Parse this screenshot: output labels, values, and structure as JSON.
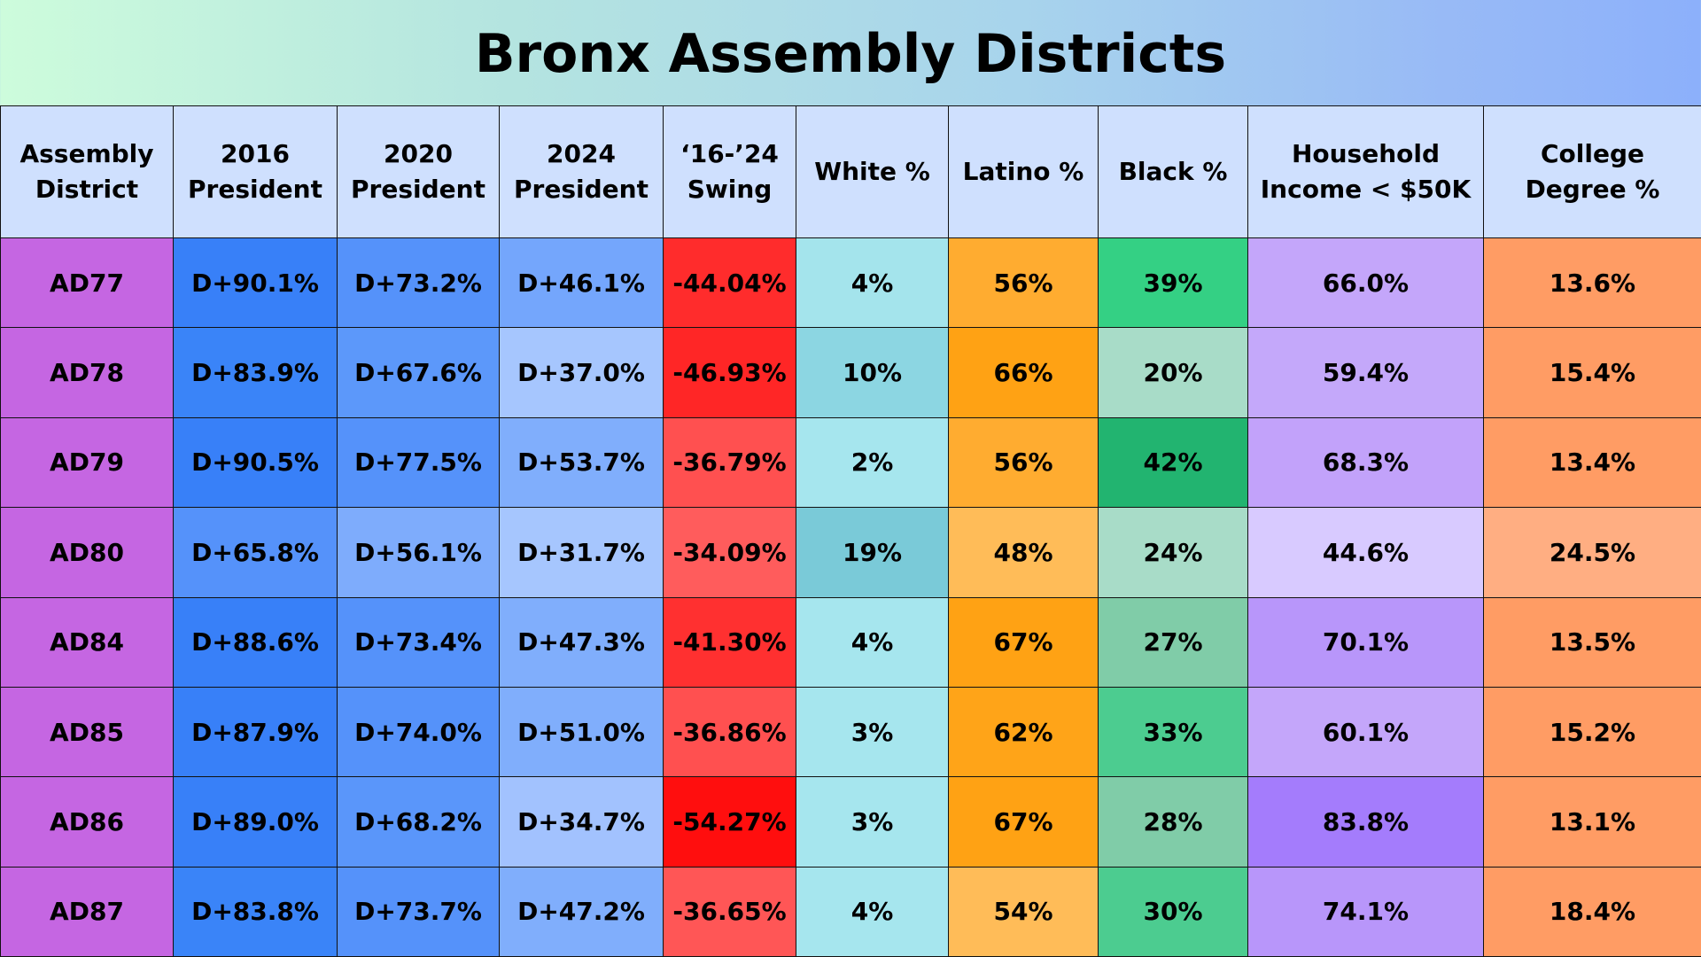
{
  "title": "Bronx Assembly Districts",
  "chart_data": {
    "type": "table",
    "title": "Bronx Assembly Districts",
    "columns": [
      [
        "Assembly",
        "District"
      ],
      [
        "2016",
        "President"
      ],
      [
        "2020",
        "President"
      ],
      [
        "2024",
        "President"
      ],
      [
        "‘16-’24",
        "Swing"
      ],
      [
        "White %"
      ],
      [
        "Latino %"
      ],
      [
        "Black %"
      ],
      [
        "Household",
        "Income < $50K"
      ],
      [
        "College",
        "Degree %"
      ]
    ],
    "rows": [
      [
        "AD77",
        "D+90.1%",
        "D+73.2%",
        "D+46.1%",
        "-44.04%",
        "4%",
        "56%",
        "39%",
        "66.0%",
        "13.6%"
      ],
      [
        "AD78",
        "D+83.9%",
        "D+67.6%",
        "D+37.0%",
        "-46.93%",
        "10%",
        "66%",
        "20%",
        "59.4%",
        "15.4%"
      ],
      [
        "AD79",
        "D+90.5%",
        "D+77.5%",
        "D+53.7%",
        "-36.79%",
        "2%",
        "56%",
        "42%",
        "68.3%",
        "13.4%"
      ],
      [
        "AD80",
        "D+65.8%",
        "D+56.1%",
        "D+31.7%",
        "-34.09%",
        "19%",
        "48%",
        "24%",
        "44.6%",
        "24.5%"
      ],
      [
        "AD84",
        "D+88.6%",
        "D+73.4%",
        "D+47.3%",
        "-41.30%",
        "4%",
        "67%",
        "27%",
        "70.1%",
        "13.5%"
      ],
      [
        "AD85",
        "D+87.9%",
        "D+74.0%",
        "D+51.0%",
        "-36.86%",
        "3%",
        "62%",
        "33%",
        "60.1%",
        "15.2%"
      ],
      [
        "AD86",
        "D+89.0%",
        "D+68.2%",
        "D+34.7%",
        "-54.27%",
        "3%",
        "67%",
        "28%",
        "83.8%",
        "13.1%"
      ],
      [
        "AD87",
        "D+83.8%",
        "D+73.7%",
        "D+47.2%",
        "-36.65%",
        "4%",
        "54%",
        "30%",
        "74.1%",
        "18.4%"
      ]
    ],
    "cell_colors": [
      [
        "#c566e2",
        "#3880f8",
        "#5592fa",
        "#74a6fc",
        "#ff2c2c",
        "#a4e4ec",
        "#ffac30",
        "#34d084",
        "#c4a6fa",
        "#ff9c64"
      ],
      [
        "#c566e2",
        "#3a84f8",
        "#5c98fa",
        "#a6c6fe",
        "#ff2626",
        "#8cd6e2",
        "#ffa214",
        "#a8dcc8",
        "#c4a8fa",
        "#ff9c64"
      ],
      [
        "#c566e2",
        "#3880f8",
        "#5592fa",
        "#80aefc",
        "#ff5050",
        "#a6e6ee",
        "#ffac30",
        "#22b470",
        "#c2a2fa",
        "#ff9c64"
      ],
      [
        "#c566e2",
        "#5592fa",
        "#7eacfc",
        "#a6c6fe",
        "#ff5c5c",
        "#7acad8",
        "#ffbc58",
        "#a8dcc8",
        "#d8caff",
        "#ffae82"
      ],
      [
        "#c566e2",
        "#3880f8",
        "#5592fa",
        "#80aefc",
        "#ff3030",
        "#a6e6ee",
        "#ffa214",
        "#80cca8",
        "#b896fa",
        "#ff9c64"
      ],
      [
        "#c566e2",
        "#3880f8",
        "#5592fa",
        "#80aefc",
        "#ff5050",
        "#a6e6ee",
        "#ffa418",
        "#4ccc90",
        "#c4a6fa",
        "#ff9c64"
      ],
      [
        "#c566e2",
        "#3880f8",
        "#5a96fa",
        "#a2c2fe",
        "#ff0e0e",
        "#a6e6ee",
        "#ffa214",
        "#80cca8",
        "#a47cfc",
        "#ff9c64"
      ],
      [
        "#c566e2",
        "#3a84f8",
        "#5592fa",
        "#80aefc",
        "#ff5656",
        "#a6e6ee",
        "#ffbc58",
        "#4ccc90",
        "#b896fa",
        "#ff9c64"
      ]
    ],
    "header_color": "#cfe0fe"
  }
}
